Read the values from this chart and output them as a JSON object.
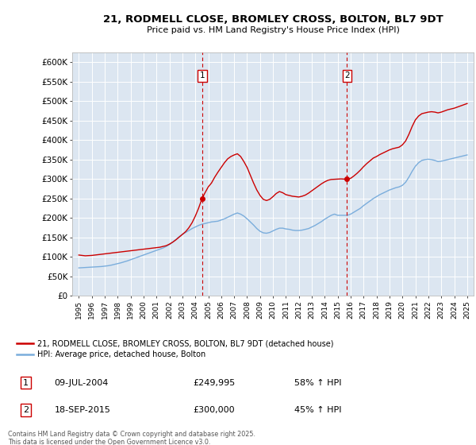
{
  "title": "21, RODMELL CLOSE, BROMLEY CROSS, BOLTON, BL7 9DT",
  "subtitle": "Price paid vs. HM Land Registry's House Price Index (HPI)",
  "ylim": [
    0,
    625000
  ],
  "yticks": [
    0,
    50000,
    100000,
    150000,
    200000,
    250000,
    300000,
    350000,
    400000,
    450000,
    500000,
    550000,
    600000
  ],
  "ytick_labels": [
    "£0",
    "£50K",
    "£100K",
    "£150K",
    "£200K",
    "£250K",
    "£300K",
    "£350K",
    "£400K",
    "£450K",
    "£500K",
    "£550K",
    "£600K"
  ],
  "xlim_start": 1994.5,
  "xlim_end": 2025.5,
  "sale1_x": 2004.52,
  "sale1_y": 249995,
  "sale1_label": "1",
  "sale1_date": "09-JUL-2004",
  "sale1_price": "£249,995",
  "sale1_hpi": "58% ↑ HPI",
  "sale2_x": 2015.72,
  "sale2_y": 300000,
  "sale2_label": "2",
  "sale2_date": "18-SEP-2015",
  "sale2_price": "£300,000",
  "sale2_hpi": "45% ↑ HPI",
  "property_color": "#cc0000",
  "hpi_color": "#7aaddc",
  "plot_bg_color": "#dce6f1",
  "legend_label_property": "21, RODMELL CLOSE, BROMLEY CROSS, BOLTON, BL7 9DT (detached house)",
  "legend_label_hpi": "HPI: Average price, detached house, Bolton",
  "footer": "Contains HM Land Registry data © Crown copyright and database right 2025.\nThis data is licensed under the Open Government Licence v3.0.",
  "property_x": [
    1995.0,
    1995.25,
    1995.5,
    1995.75,
    1996.0,
    1996.25,
    1996.5,
    1996.75,
    1997.0,
    1997.25,
    1997.5,
    1997.75,
    1998.0,
    1998.25,
    1998.5,
    1998.75,
    1999.0,
    1999.25,
    1999.5,
    1999.75,
    2000.0,
    2000.25,
    2000.5,
    2000.75,
    2001.0,
    2001.25,
    2001.5,
    2001.75,
    2002.0,
    2002.25,
    2002.5,
    2002.75,
    2003.0,
    2003.25,
    2003.5,
    2003.75,
    2004.0,
    2004.25,
    2004.52,
    2004.75,
    2005.0,
    2005.25,
    2005.5,
    2005.75,
    2006.0,
    2006.25,
    2006.5,
    2006.75,
    2007.0,
    2007.25,
    2007.5,
    2007.75,
    2008.0,
    2008.25,
    2008.5,
    2008.75,
    2009.0,
    2009.25,
    2009.5,
    2009.75,
    2010.0,
    2010.25,
    2010.5,
    2010.75,
    2011.0,
    2011.25,
    2011.5,
    2011.75,
    2012.0,
    2012.25,
    2012.5,
    2012.75,
    2013.0,
    2013.25,
    2013.5,
    2013.75,
    2014.0,
    2014.25,
    2014.5,
    2014.75,
    2015.0,
    2015.25,
    2015.5,
    2015.72,
    2016.0,
    2016.25,
    2016.5,
    2016.75,
    2017.0,
    2017.25,
    2017.5,
    2017.75,
    2018.0,
    2018.25,
    2018.5,
    2018.75,
    2019.0,
    2019.25,
    2019.5,
    2019.75,
    2020.0,
    2020.25,
    2020.5,
    2020.75,
    2021.0,
    2021.25,
    2021.5,
    2021.75,
    2022.0,
    2022.25,
    2022.5,
    2022.75,
    2023.0,
    2023.25,
    2023.5,
    2023.75,
    2024.0,
    2024.25,
    2024.5,
    2024.75,
    2025.0
  ],
  "property_y": [
    105000,
    104000,
    103000,
    103500,
    104000,
    105000,
    106000,
    107000,
    108000,
    109000,
    110000,
    111000,
    112000,
    113000,
    114000,
    115000,
    116000,
    117000,
    118000,
    119000,
    120000,
    121000,
    122000,
    123000,
    124000,
    125000,
    127000,
    129000,
    133000,
    138000,
    144000,
    151000,
    158000,
    165000,
    175000,
    188000,
    205000,
    225000,
    249995,
    265000,
    280000,
    290000,
    305000,
    318000,
    330000,
    342000,
    352000,
    358000,
    362000,
    365000,
    358000,
    345000,
    330000,
    310000,
    290000,
    272000,
    258000,
    248000,
    245000,
    248000,
    255000,
    263000,
    268000,
    265000,
    260000,
    258000,
    256000,
    255000,
    254000,
    256000,
    259000,
    264000,
    270000,
    276000,
    282000,
    288000,
    293000,
    297000,
    299000,
    299500,
    300000,
    300500,
    300000,
    300000,
    302000,
    308000,
    315000,
    323000,
    332000,
    340000,
    347000,
    354000,
    358000,
    363000,
    367000,
    371000,
    375000,
    378000,
    380000,
    382000,
    388000,
    398000,
    415000,
    435000,
    452000,
    462000,
    468000,
    470000,
    472000,
    473000,
    472000,
    470000,
    472000,
    475000,
    478000,
    480000,
    482000,
    485000,
    488000,
    491000,
    494000
  ],
  "hpi_x": [
    1995.0,
    1995.25,
    1995.5,
    1995.75,
    1996.0,
    1996.25,
    1996.5,
    1996.75,
    1997.0,
    1997.25,
    1997.5,
    1997.75,
    1998.0,
    1998.25,
    1998.5,
    1998.75,
    1999.0,
    1999.25,
    1999.5,
    1999.75,
    2000.0,
    2000.25,
    2000.5,
    2000.75,
    2001.0,
    2001.25,
    2001.5,
    2001.75,
    2002.0,
    2002.25,
    2002.5,
    2002.75,
    2003.0,
    2003.25,
    2003.5,
    2003.75,
    2004.0,
    2004.25,
    2004.5,
    2004.75,
    2005.0,
    2005.25,
    2005.5,
    2005.75,
    2006.0,
    2006.25,
    2006.5,
    2006.75,
    2007.0,
    2007.25,
    2007.5,
    2007.75,
    2008.0,
    2008.25,
    2008.5,
    2008.75,
    2009.0,
    2009.25,
    2009.5,
    2009.75,
    2010.0,
    2010.25,
    2010.5,
    2010.75,
    2011.0,
    2011.25,
    2011.5,
    2011.75,
    2012.0,
    2012.25,
    2012.5,
    2012.75,
    2013.0,
    2013.25,
    2013.5,
    2013.75,
    2014.0,
    2014.25,
    2014.5,
    2014.75,
    2015.0,
    2015.25,
    2015.5,
    2015.75,
    2016.0,
    2016.25,
    2016.5,
    2016.75,
    2017.0,
    2017.25,
    2017.5,
    2017.75,
    2018.0,
    2018.25,
    2018.5,
    2018.75,
    2019.0,
    2019.25,
    2019.5,
    2019.75,
    2020.0,
    2020.25,
    2020.5,
    2020.75,
    2021.0,
    2021.25,
    2021.5,
    2021.75,
    2022.0,
    2022.25,
    2022.5,
    2022.75,
    2023.0,
    2023.25,
    2023.5,
    2023.75,
    2024.0,
    2024.25,
    2024.5,
    2024.75,
    2025.0
  ],
  "hpi_y": [
    72000,
    72500,
    73000,
    73500,
    74000,
    74500,
    75000,
    75500,
    76500,
    77500,
    79000,
    81000,
    83000,
    85000,
    87500,
    90000,
    93000,
    96000,
    99000,
    102000,
    105000,
    108000,
    111000,
    114000,
    117000,
    120000,
    123000,
    127000,
    132000,
    138000,
    145000,
    152000,
    158000,
    163000,
    168000,
    173000,
    177000,
    181000,
    184000,
    186000,
    188000,
    190000,
    191000,
    192000,
    195000,
    198000,
    202000,
    206000,
    210000,
    213000,
    210000,
    205000,
    198000,
    190000,
    182000,
    173000,
    166000,
    162000,
    161000,
    163000,
    167000,
    171000,
    174000,
    174000,
    172000,
    171000,
    169000,
    168000,
    168000,
    169000,
    171000,
    173000,
    177000,
    181000,
    186000,
    191000,
    197000,
    202000,
    207000,
    210000,
    207000,
    207000,
    207000,
    207000,
    210000,
    215000,
    220000,
    225000,
    232000,
    238000,
    244000,
    250000,
    255000,
    260000,
    264000,
    268000,
    272000,
    275000,
    278000,
    280000,
    284000,
    292000,
    305000,
    320000,
    333000,
    342000,
    348000,
    350000,
    351000,
    350000,
    348000,
    345000,
    346000,
    348000,
    350000,
    352000,
    354000,
    356000,
    358000,
    360000,
    362000
  ]
}
